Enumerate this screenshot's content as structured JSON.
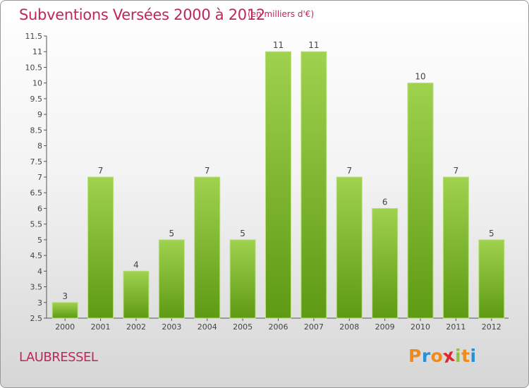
{
  "header": {
    "title": "Subventions Versées 2000 à 2012",
    "subtitle": "(en milliers d'€)"
  },
  "footer": {
    "commune": "LAUBRESSEL",
    "logo_text": "Proxiti"
  },
  "colors": {
    "title": "#c2255c",
    "bar_light": "#9fd24e",
    "bar_dark": "#5e9a14",
    "logo": [
      "#f08a1d",
      "#2a8fd3",
      "#f08a1d",
      "#e0262b",
      "#8cc63f",
      "#f08a1d",
      "#2a8fd3"
    ]
  },
  "chart_data": {
    "type": "bar",
    "categories": [
      "2000",
      "2001",
      "2002",
      "2003",
      "2004",
      "2005",
      "2006",
      "2007",
      "2008",
      "2009",
      "2010",
      "2011",
      "2012"
    ],
    "values": [
      3,
      7,
      4,
      5,
      7,
      5,
      11,
      11,
      7,
      6,
      10,
      7,
      5
    ],
    "ylim": [
      2.5,
      11.5
    ],
    "yticks": [
      "2.5",
      "3",
      "3.5",
      "4",
      "4.5",
      "5",
      "5.5",
      "6",
      "6.5",
      "7",
      "7.5",
      "8",
      "8.5",
      "9",
      "9.5",
      "10",
      "10.5",
      "11",
      "11.5"
    ],
    "data_labels": [
      "3",
      "7",
      "4",
      "5",
      "7",
      "5",
      "11",
      "11",
      "7",
      "6",
      "10",
      "7",
      "5"
    ],
    "grid": false,
    "xlabel": "",
    "ylabel": ""
  }
}
